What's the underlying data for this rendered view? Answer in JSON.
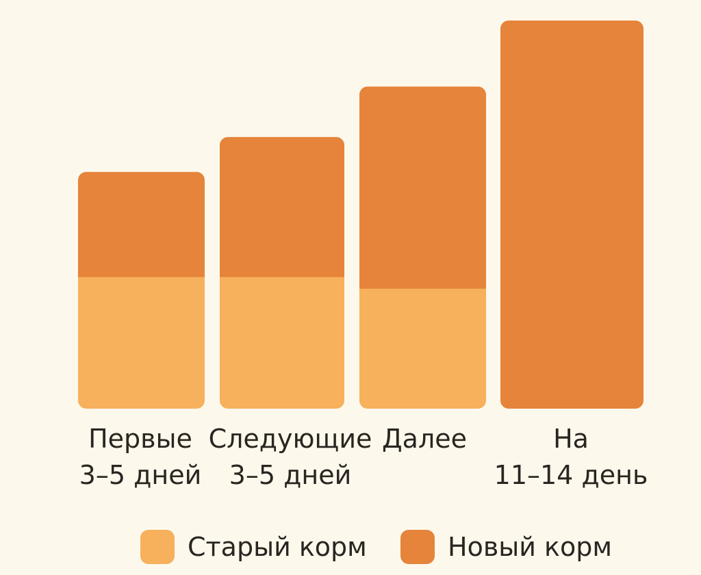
{
  "chart_data": {
    "type": "bar",
    "stacked": true,
    "categories": [
      [
        "Первые",
        "3–5 дней"
      ],
      [
        "Следующие",
        "3–5 дней"
      ],
      [
        "Далее"
      ],
      [
        "На",
        "11–14 день"
      ]
    ],
    "series": [
      {
        "name": "Старый корм",
        "values": [
          34,
          34,
          31,
          0
        ],
        "color": "#f7b05c"
      },
      {
        "name": "Новый корм",
        "values": [
          27,
          36,
          52,
          100
        ],
        "color": "#e5843a"
      }
    ],
    "ylim": [
      0,
      100
    ],
    "grid": false,
    "legend_position": "bottom"
  }
}
